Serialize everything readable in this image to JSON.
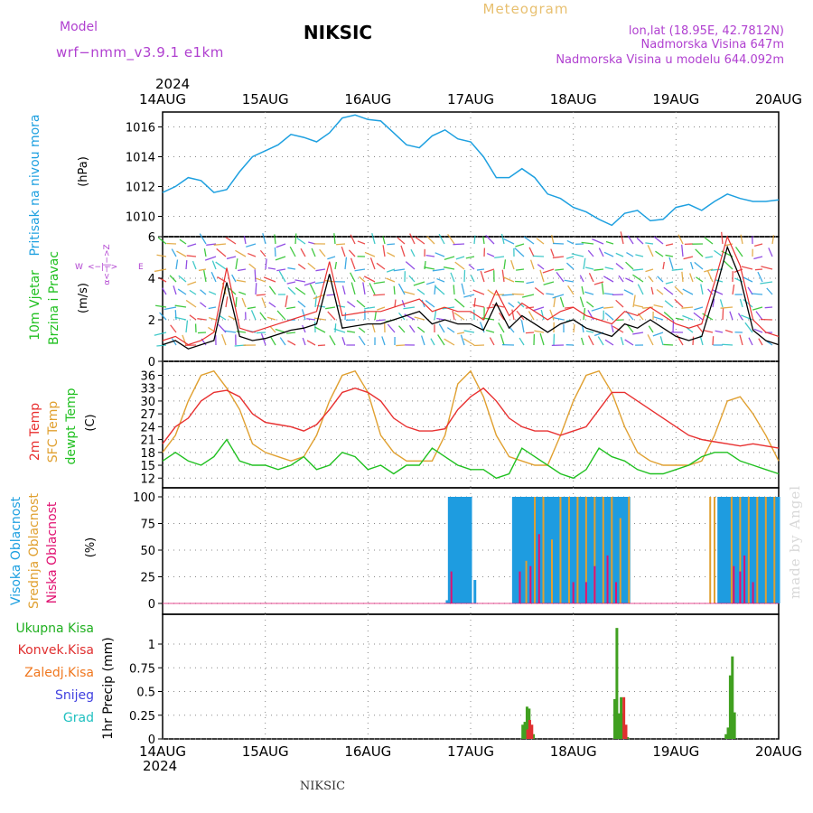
{
  "header": {
    "model_label": "Model",
    "model_name": "wrf−nmm_v3.9.1  e1km",
    "title": "NIKSIC",
    "meteogram": "Meteogram",
    "coords": "lon,lat (18.95E, 42.7812N)",
    "elevation": "Nadmorska Visina 647m",
    "model_elevation": "Nadmorska Visina u modelu 644.092m",
    "watermark": "made by Angel",
    "footer": "NIKSIC"
  },
  "time_axis": {
    "year": "2024",
    "ticks": [
      "14AUG",
      "15AUG",
      "16AUG",
      "17AUG",
      "18AUG",
      "19AUG",
      "20AUG"
    ]
  },
  "colors": {
    "magenta_text": "#b040d0",
    "pressure": "#1ea0e0",
    "t2m": "#e83030",
    "sfc": "#e0a030",
    "dew": "#20c020",
    "high_cloud": "#1e9ce0",
    "mid_cloud": "#e0a030",
    "low_cloud": "#e01070",
    "rain_total": "#40a020",
    "rain_conv": "#e03030",
    "rain_frz": "#f07820",
    "snow": "#4040e0",
    "hail": "#20c0c0"
  },
  "chart_data": [
    {
      "type": "line",
      "panel": "pressure",
      "ylabel": "Pritisak na nivou mora",
      "unit": "(hPa)",
      "y_ticks": [
        1010,
        1012,
        1014,
        1016
      ],
      "ylim": [
        1009,
        1017
      ],
      "x_hours": [
        0,
        3,
        6,
        9,
        12,
        15,
        18,
        21,
        24,
        27,
        30,
        33,
        36,
        39,
        42,
        45,
        48,
        51,
        54,
        57,
        60,
        63,
        66,
        69,
        72,
        75,
        78,
        81,
        84,
        87,
        90,
        93,
        96,
        99,
        102,
        105,
        108,
        111,
        114,
        117,
        120,
        123,
        126,
        129,
        132,
        135,
        138,
        141,
        144
      ],
      "series": [
        {
          "name": "Pritisak na nivou mora",
          "values": [
            1011.6,
            1012.0,
            1012.6,
            1012.4,
            1011.6,
            1011.8,
            1013.0,
            1014.0,
            1014.4,
            1014.8,
            1015.5,
            1015.3,
            1015.0,
            1015.6,
            1016.6,
            1016.8,
            1016.5,
            1016.4,
            1015.6,
            1014.8,
            1014.6,
            1015.4,
            1015.8,
            1015.2,
            1015.0,
            1014.0,
            1012.6,
            1012.6,
            1013.2,
            1012.6,
            1011.5,
            1011.2,
            1010.6,
            1010.3,
            1009.8,
            1009.4,
            1010.2,
            1010.4,
            1009.7,
            1009.8,
            1010.6,
            1010.8,
            1010.4,
            1011.0,
            1011.5,
            1011.2,
            1011.0,
            1011.0,
            1011.1
          ]
        }
      ]
    },
    {
      "type": "line",
      "panel": "wind",
      "ylabel": "10m Vjetar Brzina i Pravac",
      "unit": "(m/s)",
      "compass": {
        "n": "N",
        "s": "S",
        "w": "W",
        "e": "E"
      },
      "y_ticks": [
        0,
        2,
        4,
        6
      ],
      "ylim": [
        0,
        6
      ],
      "x_hours": [
        0,
        3,
        6,
        9,
        12,
        15,
        18,
        21,
        24,
        27,
        30,
        33,
        36,
        39,
        42,
        45,
        48,
        51,
        54,
        57,
        60,
        63,
        66,
        69,
        72,
        75,
        78,
        81,
        84,
        87,
        90,
        93,
        96,
        99,
        102,
        105,
        108,
        111,
        114,
        117,
        120,
        123,
        126,
        129,
        132,
        135,
        138,
        141,
        144
      ],
      "series": [
        {
          "name": "speed",
          "values": [
            0.8,
            1.0,
            0.6,
            0.8,
            1.0,
            3.8,
            1.2,
            1.0,
            1.1,
            1.3,
            1.5,
            1.6,
            1.8,
            4.2,
            1.6,
            1.7,
            1.8,
            1.8,
            2.0,
            2.2,
            2.4,
            1.8,
            2.0,
            1.8,
            1.8,
            1.5,
            2.8,
            1.6,
            2.2,
            1.8,
            1.4,
            1.8,
            2.0,
            1.6,
            1.4,
            1.2,
            1.8,
            1.6,
            2.0,
            1.6,
            1.2,
            1.0,
            1.2,
            3.2,
            5.5,
            4.0,
            1.5,
            1.0,
            0.8
          ]
        },
        {
          "name": "gust",
          "values": [
            1.0,
            1.2,
            0.8,
            1.0,
            1.4,
            4.5,
            1.6,
            1.4,
            1.6,
            1.8,
            2.0,
            2.2,
            2.4,
            4.8,
            2.2,
            2.3,
            2.4,
            2.4,
            2.6,
            2.8,
            3.0,
            2.4,
            2.6,
            2.4,
            2.4,
            2.0,
            3.4,
            2.2,
            2.8,
            2.4,
            2.0,
            2.4,
            2.6,
            2.2,
            2.0,
            1.8,
            2.4,
            2.2,
            2.6,
            2.2,
            1.8,
            1.6,
            1.8,
            3.8,
            6.0,
            4.6,
            2.0,
            1.4,
            1.2
          ]
        }
      ]
    },
    {
      "type": "line",
      "panel": "temperature",
      "ylabel": "2m Temp / SFC Temp / dewpt Temp",
      "unit": "(C)",
      "y_ticks": [
        12,
        15,
        18,
        21,
        24,
        27,
        30,
        33,
        36
      ],
      "ylim": [
        11,
        38
      ],
      "x_hours": [
        0,
        3,
        6,
        9,
        12,
        15,
        18,
        21,
        24,
        27,
        30,
        33,
        36,
        39,
        42,
        45,
        48,
        51,
        54,
        57,
        60,
        63,
        66,
        69,
        72,
        75,
        78,
        81,
        84,
        87,
        90,
        93,
        96,
        99,
        102,
        105,
        108,
        111,
        114,
        117,
        120,
        123,
        126,
        129,
        132,
        135,
        138,
        141,
        144
      ],
      "series": [
        {
          "name": "2m Temp",
          "values": [
            20,
            24,
            26,
            30,
            32,
            32.5,
            31,
            27,
            25,
            24.5,
            24,
            23,
            24.5,
            28,
            32,
            33,
            32,
            30,
            26,
            24,
            23,
            23,
            23.5,
            28,
            31,
            33,
            30,
            26,
            24,
            23,
            23,
            22,
            23,
            24,
            28,
            32,
            32,
            30,
            28,
            26,
            24,
            22,
            21,
            20.5,
            20,
            19.5,
            20,
            19.5,
            19
          ]
        },
        {
          "name": "SFC Temp",
          "values": [
            18,
            22,
            30,
            36,
            37,
            33,
            28,
            20,
            18,
            17,
            16,
            17,
            22,
            30,
            36,
            37,
            32,
            22,
            18,
            16,
            16,
            16,
            22,
            34,
            37,
            31,
            22,
            17,
            16,
            15,
            15,
            22,
            30,
            36,
            37,
            32,
            24,
            18,
            16,
            15,
            15,
            15,
            16,
            22,
            30,
            31,
            27,
            22,
            16
          ]
        },
        {
          "name": "dewpt Temp",
          "values": [
            16,
            18,
            16,
            15,
            17,
            21,
            16,
            15,
            15,
            14,
            15,
            17,
            14,
            15,
            18,
            17,
            14,
            15,
            13,
            15,
            15,
            19,
            17,
            15,
            14,
            14,
            12,
            13,
            19,
            17,
            15,
            13,
            12,
            14,
            19,
            17,
            16,
            14,
            13,
            13,
            14,
            15,
            17,
            18,
            18,
            16,
            15,
            14,
            13
          ]
        }
      ]
    },
    {
      "type": "bar",
      "panel": "cloud",
      "ylabel": "Visoka Oblacnost / Srednja Oblacnost / Niska Oblacnost",
      "unit": "(%)",
      "y_ticks": [
        0,
        25,
        50,
        75,
        100
      ],
      "ylim": [
        0,
        100
      ],
      "series": [
        {
          "name": "Visoka Oblacnost",
          "x_hours": [
            66.5,
            67,
            67.5,
            68,
            68.5,
            69,
            69.5,
            70,
            70.5,
            71,
            71.5,
            72,
            73,
            82,
            82.5,
            83,
            83.5,
            84,
            84.5,
            85,
            85.5,
            86,
            86.5,
            87,
            87.5,
            88,
            88.5,
            89,
            89.5,
            90,
            90.5,
            91,
            91.5,
            92,
            92.5,
            93,
            93.5,
            94,
            94.5,
            95,
            95.5,
            96,
            96.5,
            97,
            97.5,
            98,
            98.5,
            99,
            99.5,
            100,
            100.5,
            101,
            101.5,
            102,
            102.5,
            103,
            103.5,
            104,
            104.5,
            105,
            105.5,
            106,
            106.5,
            107,
            107.5,
            108,
            108.5,
            109,
            130,
            130.5,
            131,
            131.5,
            132,
            132.5,
            133,
            133.5,
            134,
            134.5,
            135,
            135.5,
            136,
            136.5,
            137,
            137.5,
            138,
            138.5,
            139,
            139.5,
            140,
            140.5,
            141,
            141.5,
            142,
            142.5,
            143,
            143.5,
            144
          ],
          "values": [
            3,
            100,
            100,
            100,
            100,
            100,
            100,
            100,
            100,
            100,
            100,
            100,
            22,
            100,
            100,
            100,
            100,
            100,
            100,
            100,
            100,
            100,
            100,
            100,
            100,
            100,
            100,
            100,
            100,
            100,
            100,
            100,
            100,
            100,
            100,
            100,
            100,
            100,
            100,
            100,
            100,
            100,
            100,
            100,
            100,
            100,
            100,
            100,
            100,
            100,
            100,
            100,
            100,
            100,
            100,
            100,
            100,
            100,
            100,
            100,
            100,
            100,
            100,
            100,
            100,
            100,
            100,
            100,
            100,
            100,
            100,
            100,
            100,
            100,
            100,
            100,
            100,
            100,
            100,
            100,
            100,
            100,
            100,
            100,
            100,
            100,
            100,
            100,
            100,
            100,
            100,
            100,
            100,
            100,
            100,
            100,
            100
          ]
        },
        {
          "name": "Srednja Oblacnost",
          "x_hours": [
            85,
            87,
            89,
            91,
            93,
            95,
            97,
            99,
            101,
            103,
            105,
            107,
            109,
            128,
            129,
            133,
            135,
            137,
            139,
            141,
            143
          ],
          "values": [
            40,
            100,
            100,
            60,
            100,
            100,
            100,
            100,
            100,
            100,
            100,
            80,
            100,
            100,
            100,
            100,
            100,
            100,
            100,
            100,
            100
          ]
        },
        {
          "name": "Niska Oblacnost",
          "x_hours": [
            67.5,
            83.5,
            86,
            88,
            96,
            99,
            101,
            104,
            106,
            133.5,
            135,
            136,
            138
          ],
          "values": [
            30,
            30,
            35,
            65,
            20,
            20,
            35,
            45,
            20,
            35,
            30,
            45,
            20
          ]
        }
      ]
    },
    {
      "type": "bar",
      "panel": "precip",
      "ylabel": "1hr Precip",
      "unit": "(mm)",
      "legend": [
        "Ukupna Kisa",
        "Konvek.Kisa",
        "Zaledj.Kisa",
        "Snijeg",
        "Grad"
      ],
      "y_ticks": [
        "0",
        "0.25",
        "0.5",
        "0.75",
        "1"
      ],
      "ylim": [
        0,
        1.2
      ],
      "series": [
        {
          "name": "Ukupna Kisa",
          "x_hours": [
            84.5,
            85,
            85.5,
            86,
            86.5,
            87,
            106,
            106.5,
            107,
            107.5,
            108,
            108.5,
            109,
            132,
            132.5,
            133,
            133.5,
            134
          ],
          "values": [
            0.15,
            0.18,
            0.34,
            0.32,
            0.14,
            0.05,
            0.42,
            1.17,
            0.27,
            0.44,
            0.27,
            0.08,
            0.02,
            0.05,
            0.12,
            0.67,
            0.87,
            0.28
          ]
        },
        {
          "name": "Konvek.Kisa",
          "x_hours": [
            85,
            85.5,
            86,
            107.5,
            108
          ],
          "values": [
            0.1,
            0.2,
            0.15,
            0.44,
            0.15
          ]
        }
      ]
    }
  ]
}
